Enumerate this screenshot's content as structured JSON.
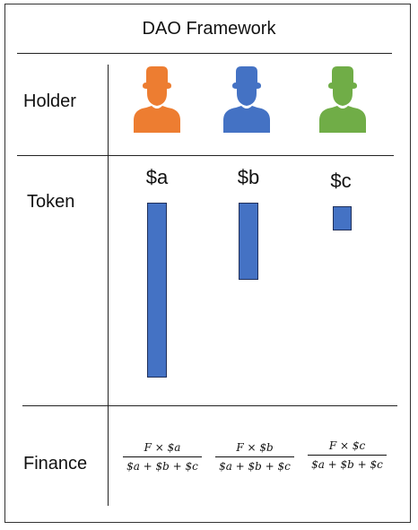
{
  "title": "DAO Framework",
  "rows": {
    "holder": "Holder",
    "token": "Token",
    "finance": "Finance"
  },
  "holders": [
    {
      "color": "#ed7d31",
      "icon": "person-icon"
    },
    {
      "color": "#4472c4",
      "icon": "person-icon"
    },
    {
      "color": "#70ad47",
      "icon": "person-icon"
    }
  ],
  "tokens": [
    {
      "label": "$a",
      "amount": 10
    },
    {
      "label": "$b",
      "amount": 4.4
    },
    {
      "label": "$c",
      "amount": 1.4
    }
  ],
  "finance": [
    {
      "numerator": "F × $a",
      "denominator": "$a + $b + $c"
    },
    {
      "numerator": "F × $b",
      "denominator": "$a + $b + $c"
    },
    {
      "numerator": "F × $c",
      "denominator": "$a + $b + $c"
    }
  ],
  "colors": {
    "bar": "#4472c4"
  }
}
